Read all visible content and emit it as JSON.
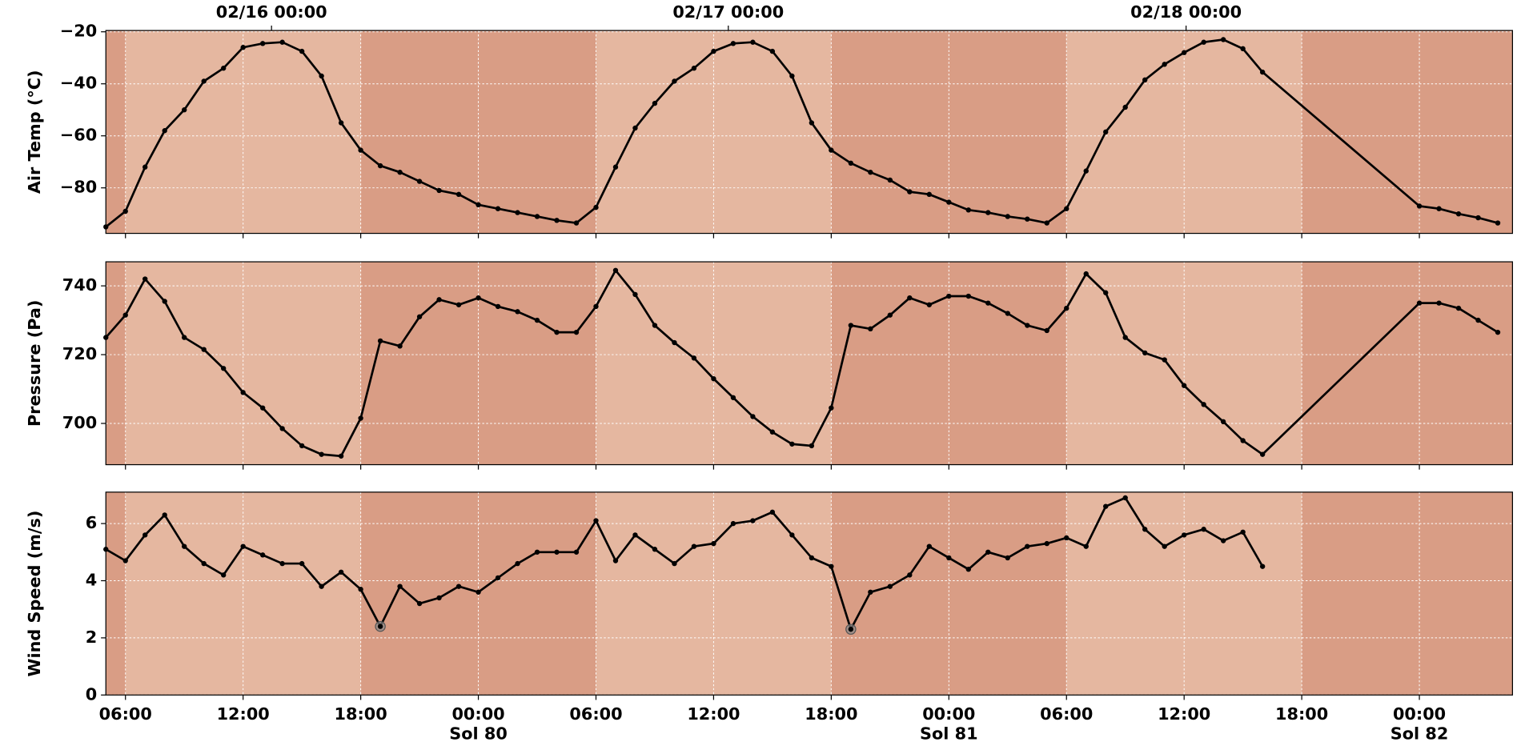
{
  "chart_data": [
    {
      "type": "line",
      "ylabel": "Air Temp (°C)",
      "color": "#000000",
      "x": [
        5,
        6,
        7,
        8,
        9,
        10,
        11,
        12,
        13,
        14,
        15,
        16,
        17,
        18,
        19,
        20,
        21,
        22,
        23,
        24,
        25,
        26,
        27,
        28,
        29,
        30,
        31,
        32,
        33,
        34,
        35,
        36,
        37,
        38,
        39,
        40,
        41,
        42,
        43,
        44,
        45,
        46,
        47,
        48,
        49,
        50,
        51,
        52,
        53,
        54,
        55,
        56,
        57,
        58,
        59,
        60,
        61,
        62,
        63,
        64,
        72,
        73,
        74,
        75,
        76
      ],
      "values": [
        -95,
        -89,
        -72,
        -58,
        -50,
        -39,
        -34,
        -26,
        -24.5,
        -24,
        -27.5,
        -37,
        -55,
        -65.5,
        -71.5,
        -74,
        -77.5,
        -81,
        -82.5,
        -86.5,
        -88,
        -89.5,
        -91,
        -92.5,
        -93.5,
        -87.5,
        -72,
        -57,
        -47.5,
        -39,
        -34,
        -27.5,
        -24.5,
        -24,
        -27.5,
        -37,
        -55,
        -65.5,
        -70.5,
        -74,
        -77,
        -81.5,
        -82.5,
        -85.5,
        -88.5,
        -89.5,
        -91,
        -92,
        -93.5,
        -88,
        -73.5,
        -58.5,
        -49,
        -38.5,
        -32.5,
        -28,
        -24,
        -23,
        -26.5,
        -35.5,
        -87,
        -88,
        -90,
        -91.5,
        -93.5
      ],
      "xlim": [
        5,
        76.75
      ],
      "ylim": [
        -97.5,
        -19.5
      ],
      "yticks": [
        {
          "value": -80,
          "label": "−80"
        },
        {
          "value": -60,
          "label": "−60"
        },
        {
          "value": -40,
          "label": "−40"
        },
        {
          "value": -20,
          "label": "−20"
        }
      ],
      "top_xticks": [
        {
          "value": 13.45,
          "label": "02/16 00:00"
        },
        {
          "value": 36.75,
          "label": "02/17 00:00"
        },
        {
          "value": 60.1,
          "label": "02/18 00:00"
        }
      ],
      "grid": true,
      "night": [
        [
          5,
          6
        ],
        [
          18,
          30
        ],
        [
          42,
          54
        ],
        [
          66,
          76.75
        ]
      ],
      "day_color": "#e5b7a0",
      "night_color": "#d99d85"
    },
    {
      "type": "line",
      "ylabel": "Pressure (Pa)",
      "color": "#000000",
      "x": [
        5,
        6,
        7,
        8,
        9,
        10,
        11,
        12,
        13,
        14,
        15,
        16,
        17,
        18,
        19,
        20,
        21,
        22,
        23,
        24,
        25,
        26,
        27,
        28,
        29,
        30,
        31,
        32,
        33,
        34,
        35,
        36,
        37,
        38,
        39,
        40,
        41,
        42,
        43,
        44,
        45,
        46,
        47,
        48,
        49,
        50,
        51,
        52,
        53,
        54,
        55,
        56,
        57,
        58,
        59,
        60,
        61,
        62,
        63,
        64,
        72,
        73,
        74,
        75,
        76
      ],
      "values": [
        725,
        731.5,
        742,
        735.5,
        725,
        721.5,
        716,
        709,
        704.5,
        698.5,
        693.5,
        691,
        690.5,
        701.5,
        724,
        722.5,
        731,
        736,
        734.5,
        736.5,
        734,
        732.5,
        730,
        726.5,
        726.5,
        734,
        744.5,
        737.5,
        728.5,
        723.5,
        719,
        713,
        707.5,
        702,
        697.5,
        694,
        693.5,
        704.5,
        728.5,
        727.5,
        731.5,
        736.5,
        734.5,
        737,
        737,
        735,
        732,
        728.5,
        727,
        733.5,
        743.5,
        738,
        725,
        720.5,
        718.5,
        711,
        705.5,
        700.5,
        695,
        691,
        735,
        735,
        733.5,
        730,
        726.5
      ],
      "xlim": [
        5,
        76.75
      ],
      "ylim": [
        688,
        747
      ],
      "yticks": [
        700,
        720,
        740
      ],
      "grid": true,
      "night": [
        [
          5,
          6
        ],
        [
          18,
          30
        ],
        [
          42,
          54
        ],
        [
          66,
          76.75
        ]
      ],
      "day_color": "#e5b7a0",
      "night_color": "#d99d85"
    },
    {
      "type": "line",
      "ylabel": "Wind Speed (m/s)",
      "color": "#000000",
      "x": [
        5,
        6,
        7,
        8,
        9,
        10,
        11,
        12,
        13,
        14,
        15,
        16,
        17,
        18,
        19,
        20,
        21,
        22,
        23,
        24,
        25,
        26,
        27,
        28,
        29,
        30,
        31,
        32,
        33,
        34,
        35,
        36,
        37,
        38,
        39,
        40,
        41,
        42,
        43,
        44,
        45,
        46,
        47,
        48,
        49,
        50,
        51,
        52,
        53,
        54,
        55,
        56,
        57,
        58,
        59,
        60,
        61,
        62,
        63,
        64
      ],
      "values": [
        5.1,
        4.7,
        5.6,
        6.3,
        5.2,
        4.6,
        4.2,
        5.2,
        4.9,
        4.6,
        4.6,
        3.8,
        4.3,
        3.7,
        2.4,
        3.8,
        3.2,
        3.4,
        3.8,
        3.6,
        4.1,
        4.6,
        5.0,
        5.0,
        5.0,
        6.1,
        4.7,
        5.6,
        5.1,
        4.6,
        5.2,
        5.3,
        6.0,
        6.1,
        6.4,
        5.6,
        4.8,
        4.5,
        2.3,
        3.6,
        3.8,
        4.2,
        5.2,
        4.8,
        4.4,
        5.0,
        4.8,
        5.2,
        5.3,
        5.5,
        5.2,
        6.6,
        6.9,
        5.8,
        5.2,
        5.6,
        5.8,
        5.4,
        5.7,
        4.5
      ],
      "flagged_x": [
        19,
        43
      ],
      "xlim": [
        5,
        76.75
      ],
      "ylim": [
        0,
        7.1
      ],
      "yticks": [
        0,
        2,
        4,
        6
      ],
      "xticks": [
        {
          "value": 6,
          "label": "06:00"
        },
        {
          "value": 12,
          "label": "12:00"
        },
        {
          "value": 18,
          "label": "18:00"
        },
        {
          "value": 24,
          "label": "00:00"
        },
        {
          "value": 30,
          "label": "06:00"
        },
        {
          "value": 36,
          "label": "12:00"
        },
        {
          "value": 42,
          "label": "18:00"
        },
        {
          "value": 48,
          "label": "00:00"
        },
        {
          "value": 54,
          "label": "06:00"
        },
        {
          "value": 60,
          "label": "12:00"
        },
        {
          "value": 66,
          "label": "18:00"
        },
        {
          "value": 72,
          "label": "00:00"
        }
      ],
      "sol_labels": [
        {
          "value": 24,
          "label": "Sol 80"
        },
        {
          "value": 48,
          "label": "Sol 81"
        },
        {
          "value": 72,
          "label": "Sol 82"
        }
      ],
      "grid": true,
      "night": [
        [
          5,
          6
        ],
        [
          18,
          30
        ],
        [
          42,
          54
        ],
        [
          66,
          76.75
        ]
      ],
      "day_color": "#e5b7a0",
      "night_color": "#d99d85"
    }
  ]
}
